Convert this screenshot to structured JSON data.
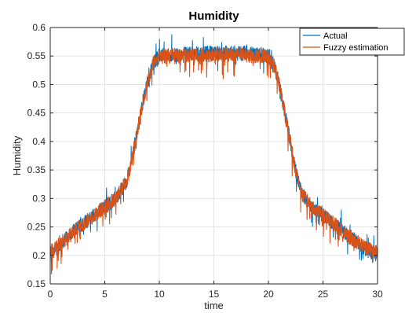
{
  "chart_data": {
    "type": "line",
    "title": "Humidity",
    "xlabel": "time",
    "ylabel": "Humidity",
    "xlim": [
      0,
      30
    ],
    "ylim": [
      0.15,
      0.6
    ],
    "xticks": [
      0,
      5,
      10,
      15,
      20,
      25,
      30
    ],
    "yticks": [
      0.15,
      0.2,
      0.25,
      0.3,
      0.35,
      0.4,
      0.45,
      0.5,
      0.55,
      0.6
    ],
    "xtick_labels": [
      "0",
      "5",
      "10",
      "15",
      "20",
      "25",
      "30"
    ],
    "ytick_labels": [
      "0.15",
      "0.2",
      "0.25",
      "0.3",
      "0.35",
      "0.4",
      "0.45",
      "0.5",
      "0.55",
      "0.6"
    ],
    "grid": true,
    "legend_position": "top-right",
    "noise_amplitude": 0.013,
    "series": [
      {
        "name": "Actual",
        "color": "#0072bd",
        "x": [
          0,
          1,
          2,
          3,
          4,
          5,
          6,
          7,
          7.5,
          8,
          8.5,
          9,
          9.5,
          10,
          11,
          12,
          13,
          14,
          15,
          16,
          17,
          18,
          19,
          20,
          20.5,
          21,
          21.5,
          22,
          22.5,
          23,
          24,
          25,
          26,
          27,
          28,
          29,
          30
        ],
        "values": [
          0.2,
          0.22,
          0.24,
          0.255,
          0.27,
          0.285,
          0.3,
          0.33,
          0.37,
          0.42,
          0.47,
          0.51,
          0.54,
          0.55,
          0.552,
          0.553,
          0.554,
          0.555,
          0.556,
          0.556,
          0.555,
          0.555,
          0.554,
          0.55,
          0.535,
          0.5,
          0.45,
          0.4,
          0.35,
          0.31,
          0.285,
          0.27,
          0.255,
          0.24,
          0.225,
          0.21,
          0.2
        ]
      },
      {
        "name": "Fuzzy estimation",
        "color": "#d95319",
        "x": [
          0,
          1,
          2,
          3,
          4,
          5,
          6,
          7,
          7.5,
          8,
          8.5,
          9,
          9.5,
          10,
          11,
          12,
          13,
          14,
          15,
          16,
          17,
          18,
          19,
          20,
          20.5,
          21,
          21.5,
          22,
          22.5,
          23,
          24,
          25,
          26,
          27,
          28,
          29,
          30
        ],
        "values": [
          0.205,
          0.222,
          0.24,
          0.255,
          0.27,
          0.285,
          0.3,
          0.33,
          0.37,
          0.42,
          0.47,
          0.51,
          0.54,
          0.548,
          0.55,
          0.551,
          0.551,
          0.552,
          0.552,
          0.552,
          0.552,
          0.551,
          0.55,
          0.548,
          0.533,
          0.5,
          0.45,
          0.4,
          0.35,
          0.31,
          0.285,
          0.27,
          0.255,
          0.24,
          0.225,
          0.212,
          0.205
        ]
      }
    ]
  }
}
